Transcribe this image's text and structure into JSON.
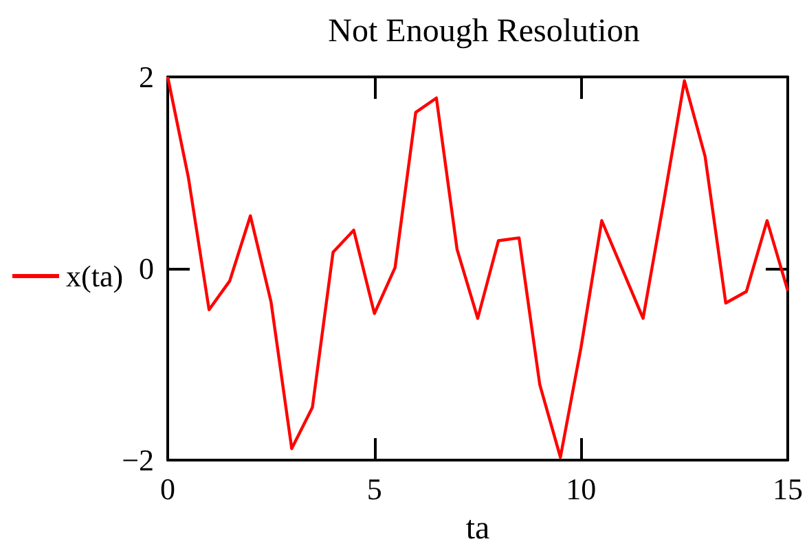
{
  "chart_data": {
    "type": "line",
    "title": "Not Enough Resolution",
    "xlabel": "ta",
    "x": [
      0,
      0.5,
      1,
      1.5,
      2,
      2.5,
      3,
      3.5,
      4,
      4.5,
      5,
      5.5,
      6,
      6.5,
      7,
      7.5,
      8,
      8.5,
      9,
      9.5,
      10,
      10.5,
      11,
      11.5,
      12,
      12.5,
      13,
      13.5,
      14,
      14.5,
      15
    ],
    "series": [
      {
        "name": "x(ta)",
        "color": "#ff0000",
        "values": [
          2.0,
          0.95,
          -0.43,
          -0.13,
          0.55,
          -0.35,
          -1.88,
          -1.45,
          0.17,
          0.4,
          -0.47,
          0.01,
          1.63,
          1.78,
          0.2,
          -0.52,
          0.29,
          0.32,
          -1.21,
          -1.97,
          -0.82,
          0.5,
          -0.01,
          -0.52,
          0.7,
          1.96,
          1.17,
          -0.36,
          -0.24,
          0.5,
          -0.23
        ]
      }
    ],
    "xlim": [
      0,
      15
    ],
    "xticks": [
      0,
      5,
      10,
      15
    ],
    "ylim": [
      -2,
      2
    ],
    "yticks": [
      -2,
      0,
      2
    ],
    "grid": false,
    "legend": "left",
    "marker": "none",
    "line_style": "solid"
  }
}
